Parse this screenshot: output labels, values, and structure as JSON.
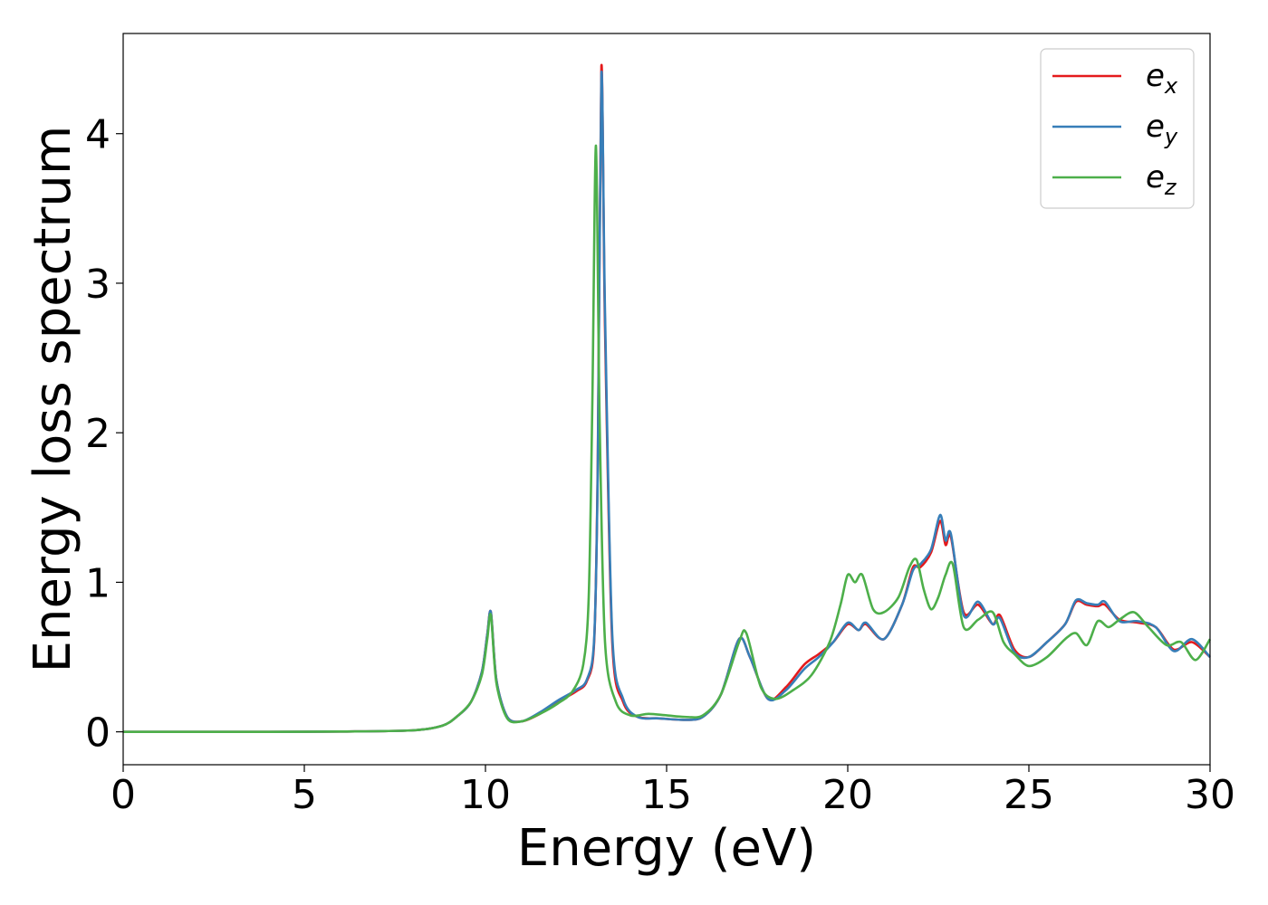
{
  "chart_data": {
    "type": "line",
    "title": "",
    "xlabel": "Energy (eV)",
    "ylabel": "Energy loss spectrum",
    "xlim": [
      0,
      30
    ],
    "ylim": [
      -0.22,
      4.67
    ],
    "xticks": [
      0,
      5,
      10,
      15,
      20,
      25,
      30
    ],
    "xtick_labels": [
      "0",
      "5",
      "10",
      "15",
      "20",
      "25",
      "30"
    ],
    "yticks": [
      0,
      1,
      2,
      3,
      4
    ],
    "ytick_labels": [
      "0",
      "1",
      "2",
      "3",
      "4"
    ],
    "grid": false,
    "legend_position": "top-right",
    "series": [
      {
        "name": "e_x",
        "legend_base": "e",
        "legend_sub": "x",
        "color": "#e41a1c",
        "x": [
          0,
          2,
          4,
          6,
          8,
          8.8,
          9.2,
          9.6,
          9.9,
          10.05,
          10.15,
          10.3,
          10.6,
          11,
          11.5,
          12,
          12.5,
          12.8,
          13.0,
          13.1,
          13.2,
          13.3,
          13.5,
          13.8,
          14.2,
          14.8,
          15.5,
          16,
          16.5,
          17.0,
          17.3,
          17.8,
          18.3,
          18.8,
          19.2,
          19.6,
          20.0,
          20.3,
          20.5,
          21.0,
          21.5,
          21.8,
          22.0,
          22.3,
          22.55,
          22.7,
          22.85,
          23.2,
          23.6,
          24.0,
          24.2,
          24.6,
          25.0,
          25.5,
          26.0,
          26.3,
          26.6,
          26.9,
          27.1,
          27.5,
          28.0,
          28.5,
          29.0,
          29.5,
          30
        ],
        "values": [
          0,
          0,
          0,
          0.002,
          0.01,
          0.04,
          0.1,
          0.2,
          0.4,
          0.65,
          0.8,
          0.35,
          0.1,
          0.07,
          0.12,
          0.2,
          0.27,
          0.34,
          0.6,
          1.8,
          4.45,
          2.7,
          0.6,
          0.2,
          0.1,
          0.09,
          0.08,
          0.1,
          0.25,
          0.62,
          0.5,
          0.22,
          0.3,
          0.45,
          0.52,
          0.6,
          0.72,
          0.68,
          0.72,
          0.62,
          0.85,
          1.1,
          1.1,
          1.2,
          1.41,
          1.25,
          1.3,
          0.8,
          0.85,
          0.72,
          0.78,
          0.55,
          0.5,
          0.6,
          0.72,
          0.87,
          0.85,
          0.84,
          0.85,
          0.75,
          0.73,
          0.7,
          0.55,
          0.6,
          0.5
        ]
      },
      {
        "name": "e_y",
        "legend_base": "e",
        "legend_sub": "y",
        "color": "#377eb8",
        "x": [
          0,
          2,
          4,
          6,
          8,
          8.8,
          9.2,
          9.6,
          9.9,
          10.05,
          10.15,
          10.3,
          10.6,
          11,
          11.5,
          12,
          12.5,
          12.8,
          13.0,
          13.1,
          13.2,
          13.3,
          13.5,
          13.8,
          14.2,
          14.8,
          15.5,
          16,
          16.5,
          17.0,
          17.3,
          17.8,
          18.3,
          18.8,
          19.2,
          19.6,
          20.0,
          20.3,
          20.5,
          21.0,
          21.5,
          21.8,
          22.0,
          22.3,
          22.55,
          22.7,
          22.85,
          23.2,
          23.6,
          24.0,
          24.2,
          24.6,
          25.0,
          25.5,
          26.0,
          26.3,
          26.6,
          26.9,
          27.1,
          27.5,
          28.0,
          28.5,
          29.0,
          29.5,
          30
        ],
        "values": [
          0,
          0,
          0,
          0.002,
          0.01,
          0.04,
          0.1,
          0.2,
          0.4,
          0.65,
          0.8,
          0.35,
          0.1,
          0.07,
          0.13,
          0.21,
          0.28,
          0.35,
          0.62,
          1.75,
          4.4,
          2.8,
          0.65,
          0.22,
          0.1,
          0.09,
          0.08,
          0.1,
          0.25,
          0.62,
          0.5,
          0.22,
          0.28,
          0.42,
          0.5,
          0.6,
          0.73,
          0.68,
          0.73,
          0.62,
          0.85,
          1.08,
          1.12,
          1.22,
          1.45,
          1.28,
          1.32,
          0.78,
          0.87,
          0.72,
          0.76,
          0.53,
          0.5,
          0.6,
          0.72,
          0.88,
          0.86,
          0.85,
          0.87,
          0.74,
          0.74,
          0.7,
          0.54,
          0.62,
          0.5
        ]
      },
      {
        "name": "e_z",
        "legend_base": "e",
        "legend_sub": "z",
        "color": "#4daf4a",
        "x": [
          0,
          2,
          4,
          6,
          8,
          8.8,
          9.2,
          9.6,
          9.9,
          10.05,
          10.15,
          10.3,
          10.6,
          11,
          11.5,
          12,
          12.4,
          12.7,
          12.85,
          12.95,
          13.05,
          13.15,
          13.3,
          13.6,
          14.0,
          14.5,
          15.0,
          15.5,
          16,
          16.5,
          17.0,
          17.2,
          17.6,
          18.0,
          18.5,
          19.0,
          19.5,
          19.8,
          20.0,
          20.2,
          20.4,
          20.7,
          21.0,
          21.4,
          21.7,
          21.9,
          22.1,
          22.3,
          22.5,
          22.7,
          22.9,
          23.2,
          23.6,
          24.0,
          24.3,
          24.6,
          25.0,
          25.5,
          26.0,
          26.3,
          26.6,
          26.9,
          27.2,
          27.5,
          27.9,
          28.3,
          28.8,
          29.2,
          29.6,
          30
        ],
        "values": [
          0,
          0,
          0,
          0.002,
          0.01,
          0.04,
          0.1,
          0.2,
          0.38,
          0.62,
          0.78,
          0.33,
          0.09,
          0.07,
          0.12,
          0.19,
          0.27,
          0.45,
          0.9,
          2.2,
          3.92,
          2.1,
          0.6,
          0.2,
          0.11,
          0.12,
          0.11,
          0.1,
          0.11,
          0.25,
          0.6,
          0.66,
          0.3,
          0.22,
          0.28,
          0.38,
          0.6,
          0.85,
          1.05,
          1.0,
          1.05,
          0.82,
          0.8,
          0.9,
          1.1,
          1.15,
          0.95,
          0.82,
          0.9,
          1.05,
          1.12,
          0.7,
          0.75,
          0.8,
          0.6,
          0.52,
          0.44,
          0.5,
          0.62,
          0.66,
          0.58,
          0.74,
          0.7,
          0.75,
          0.8,
          0.7,
          0.58,
          0.6,
          0.48,
          0.62
        ]
      }
    ]
  }
}
